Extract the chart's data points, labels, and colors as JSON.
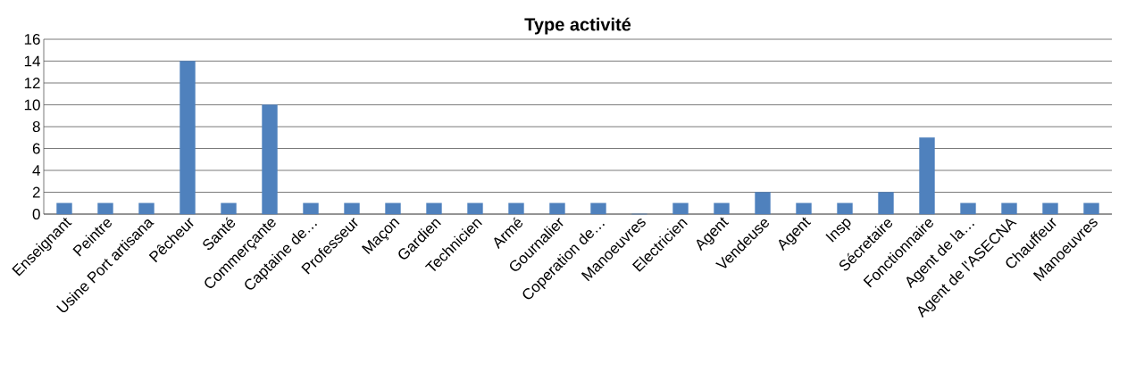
{
  "chart_data": {
    "type": "bar",
    "title": "Type activité",
    "categories": [
      "Enseignant",
      "Peintre",
      "Usine Port artisana",
      "Pêcheur",
      "Santé",
      "Commerçante",
      "Captaine de…",
      "Professeur",
      "Maçon",
      "Gardien",
      "Technicien",
      "Armé",
      "Gournalier",
      "Coperation de…",
      "Manoeuvres",
      "Electricien",
      "Agent",
      "Vendeuse",
      "Agent",
      "Insp",
      "Sécretaire",
      "Fonctionnaire",
      "Agent de la…",
      "Agent de l'ASECNA",
      "Chauffeur",
      "Manoeuvres"
    ],
    "values": [
      1,
      1,
      1,
      14,
      1,
      10,
      1,
      1,
      1,
      1,
      1,
      1,
      1,
      1,
      0,
      1,
      1,
      2,
      1,
      1,
      2,
      7,
      1,
      1,
      1,
      1
    ],
    "color": "#4f81bd",
    "ylim": [
      0,
      16
    ],
    "yticks": [
      0,
      2,
      4,
      6,
      8,
      10,
      12,
      14,
      16
    ],
    "grid": "y"
  }
}
